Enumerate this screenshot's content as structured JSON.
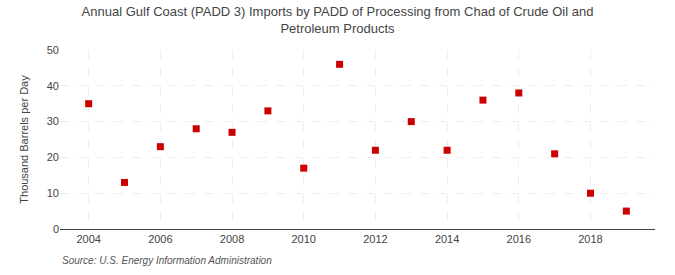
{
  "chart_data": {
    "type": "scatter",
    "title": "Annual Gulf Coast (PADD 3) Imports by PADD of Processing from Chad of Crude Oil and\nPetroleum Products",
    "ylabel": "Thousand Barrels per Day",
    "annotations": [
      "Source: U.S. Energy Information Administration"
    ],
    "x": [
      2004,
      2005,
      2006,
      2007,
      2008,
      2009,
      2010,
      2011,
      2012,
      2013,
      2014,
      2015,
      2016,
      2017,
      2018,
      2019
    ],
    "values": [
      35,
      13,
      23,
      28,
      27,
      33,
      17,
      46,
      22,
      30,
      22,
      36,
      38,
      21,
      10,
      5
    ],
    "color": "#cc0000",
    "marker": "square",
    "xlim": [
      2003.2,
      2019.8
    ],
    "xticks": [
      2004,
      2006,
      2008,
      2010,
      2012,
      2014,
      2016,
      2018
    ],
    "ylim": [
      0,
      50
    ],
    "yticks": [
      0,
      10,
      20,
      30,
      40,
      50
    ],
    "grid": true
  }
}
